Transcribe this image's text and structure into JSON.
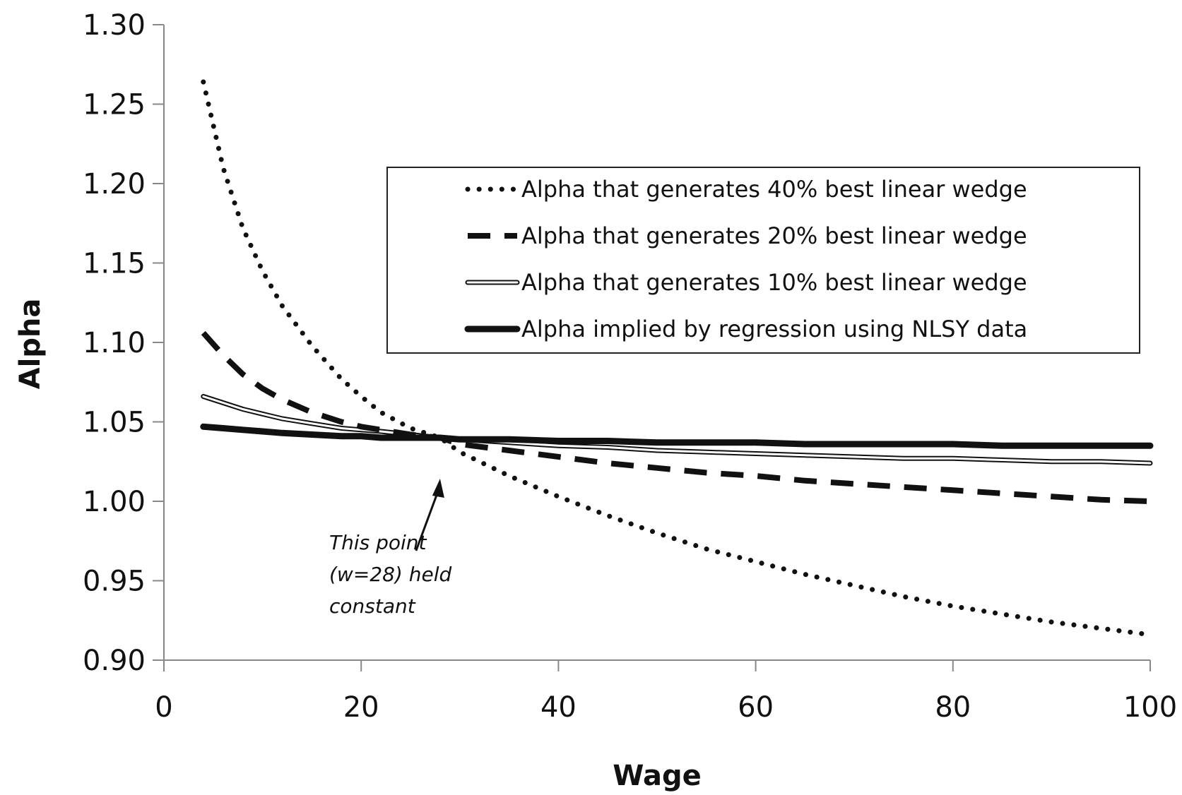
{
  "chart_data": {
    "type": "line",
    "title": "",
    "xlabel": "Wage",
    "ylabel": "Alpha",
    "xlim": [
      0,
      100
    ],
    "ylim": [
      0.9,
      1.3
    ],
    "xticks": [
      0,
      20,
      40,
      60,
      80,
      100
    ],
    "yticks": [
      0.9,
      0.95,
      1.0,
      1.05,
      1.1,
      1.15,
      1.2,
      1.25,
      1.3
    ],
    "xtick_labels": [
      "0",
      "20",
      "40",
      "60",
      "80",
      "100"
    ],
    "ytick_labels": [
      "0.90",
      "0.95",
      "1.00",
      "1.05",
      "1.10",
      "1.15",
      "1.20",
      "1.25",
      "1.30"
    ],
    "grid": false,
    "legend_position": "right",
    "x": [
      4,
      6,
      8,
      10,
      12,
      15,
      18,
      20,
      22,
      25,
      28,
      30,
      35,
      40,
      45,
      50,
      55,
      60,
      65,
      70,
      75,
      80,
      85,
      90,
      95,
      100
    ],
    "series": [
      {
        "name": "Alpha that generates 40% best linear wedge",
        "style": "dotted",
        "values": [
          1.264,
          1.21,
          1.172,
          1.145,
          1.123,
          1.098,
          1.077,
          1.066,
          1.056,
          1.046,
          1.04,
          1.031,
          1.016,
          1.003,
          0.991,
          0.98,
          0.97,
          0.962,
          0.954,
          0.947,
          0.94,
          0.934,
          0.929,
          0.924,
          0.92,
          0.916
        ]
      },
      {
        "name": "Alpha that generates 20% best linear wedge",
        "style": "dashed",
        "values": [
          1.106,
          1.092,
          1.08,
          1.071,
          1.064,
          1.056,
          1.05,
          1.047,
          1.045,
          1.042,
          1.04,
          1.036,
          1.032,
          1.028,
          1.024,
          1.021,
          1.018,
          1.016,
          1.013,
          1.011,
          1.009,
          1.007,
          1.005,
          1.003,
          1.001,
          1.0
        ]
      },
      {
        "name": "Alpha that generates 10% best linear wedge",
        "style": "double",
        "values": [
          1.066,
          1.062,
          1.058,
          1.055,
          1.052,
          1.049,
          1.046,
          1.045,
          1.044,
          1.042,
          1.04,
          1.039,
          1.037,
          1.035,
          1.034,
          1.032,
          1.031,
          1.03,
          1.029,
          1.028,
          1.027,
          1.027,
          1.026,
          1.025,
          1.025,
          1.024
        ]
      },
      {
        "name": "Alpha implied by regression using NLSY data",
        "style": "solid-thick",
        "values": [
          1.047,
          1.046,
          1.045,
          1.044,
          1.043,
          1.042,
          1.041,
          1.041,
          1.04,
          1.04,
          1.04,
          1.039,
          1.039,
          1.038,
          1.038,
          1.037,
          1.037,
          1.037,
          1.036,
          1.036,
          1.036,
          1.036,
          1.035,
          1.035,
          1.035,
          1.035
        ]
      }
    ],
    "annotations": [
      {
        "lines": [
          "This point",
          "(w=28) held",
          "constant"
        ],
        "arrow_to": {
          "x": 28,
          "y": 1.04
        }
      }
    ]
  }
}
